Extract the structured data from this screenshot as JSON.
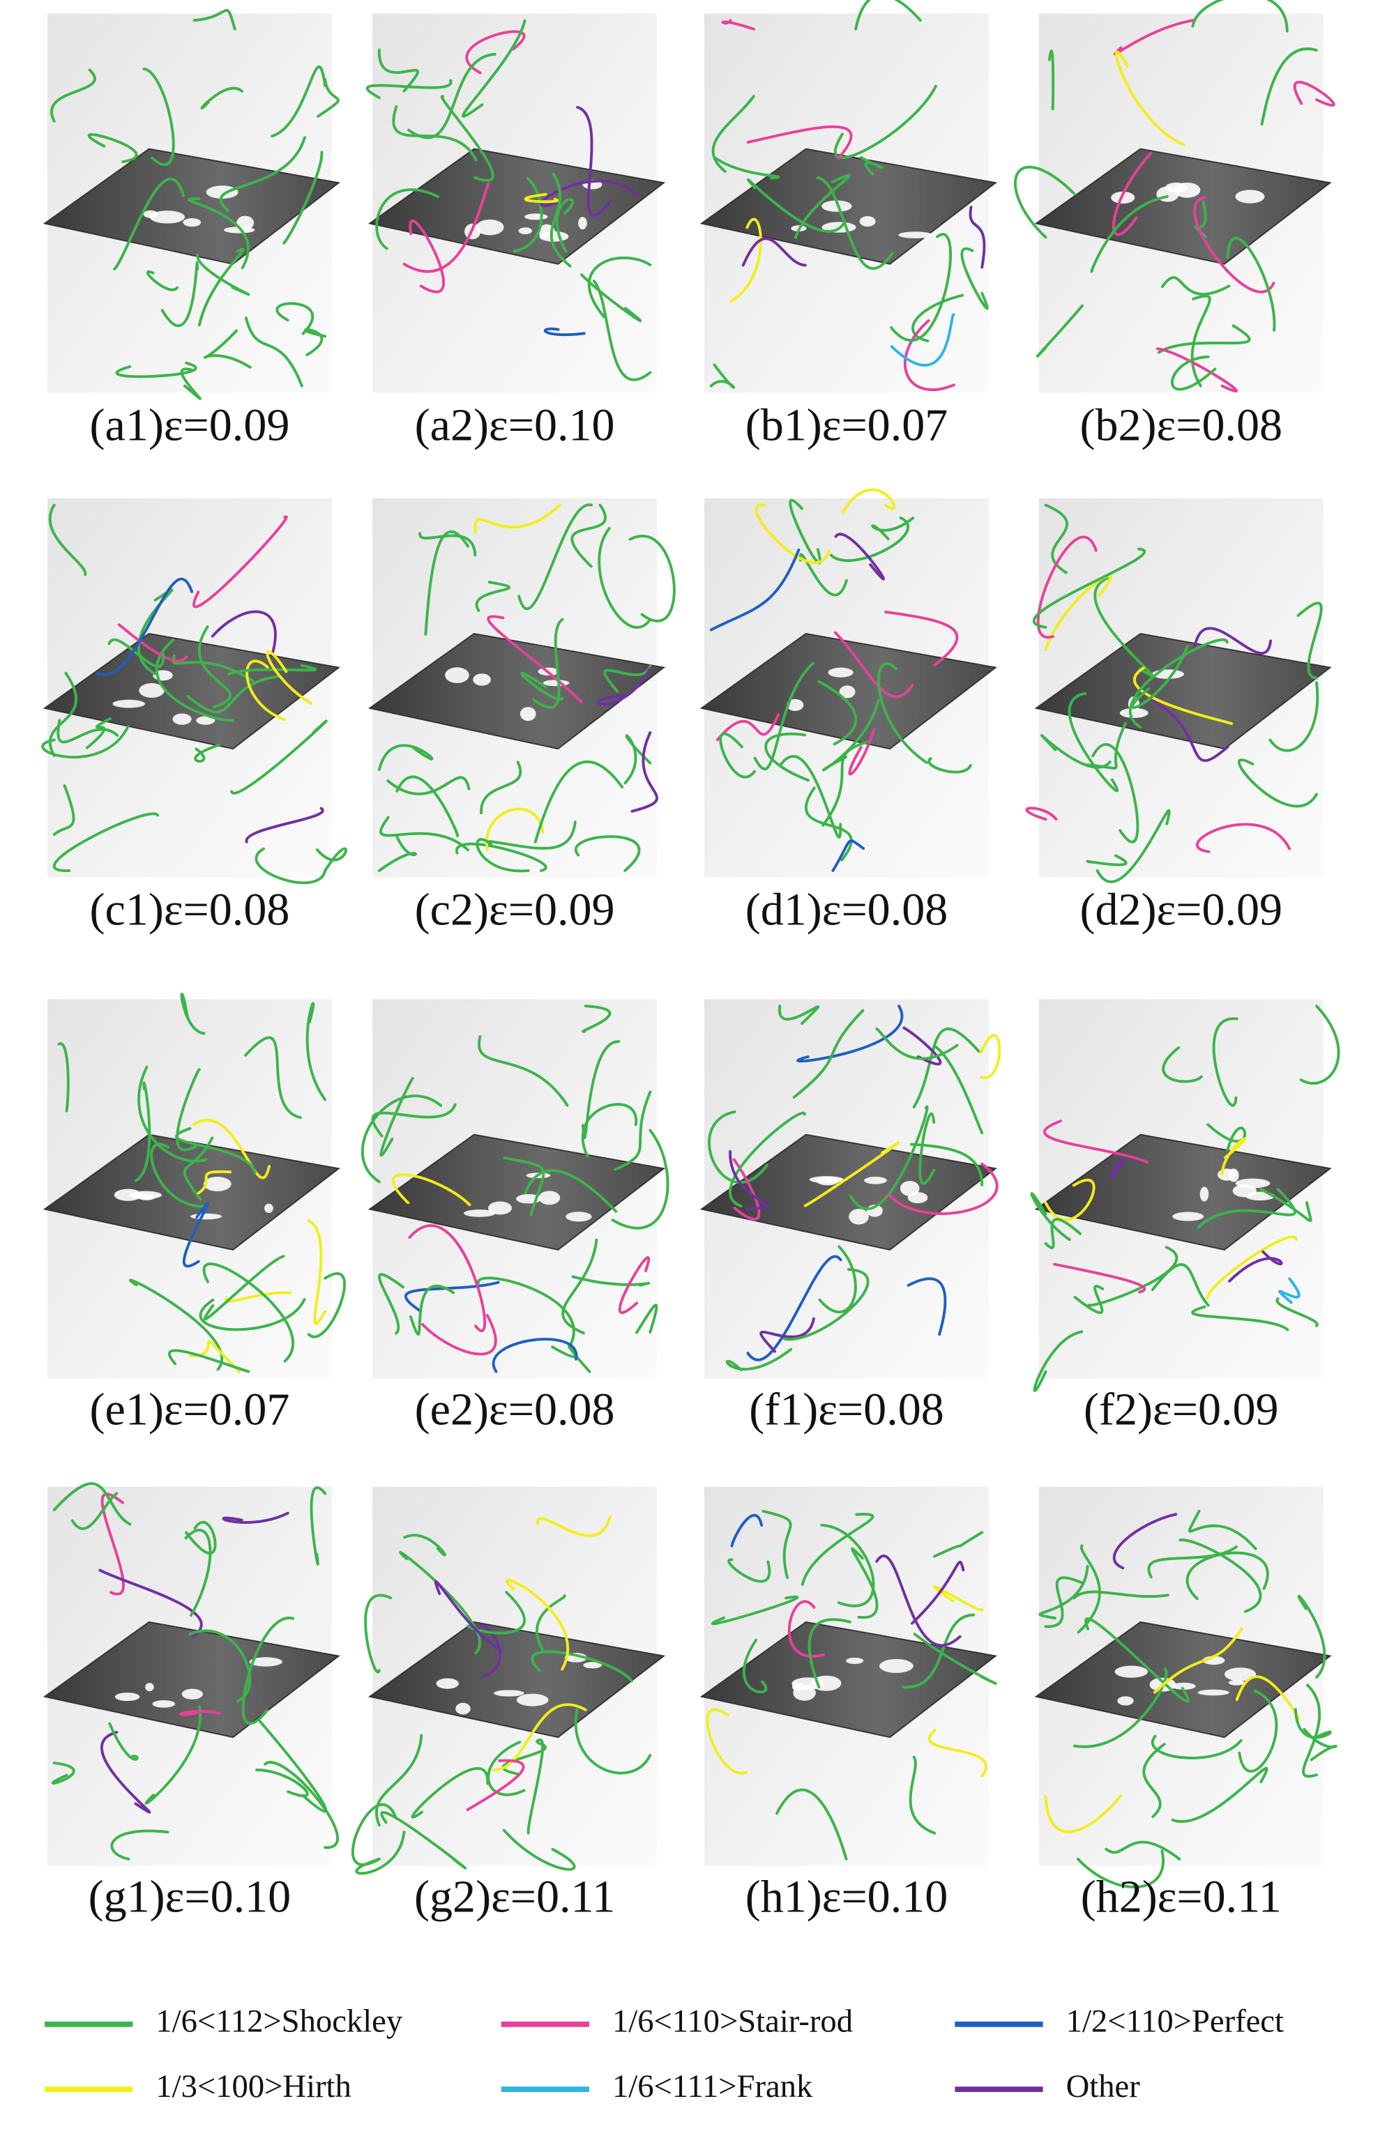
{
  "panels": [
    {
      "label": "(a1)ε=0.09"
    },
    {
      "label": "(a2)ε=0.10"
    },
    {
      "label": "(b1)ε=0.07"
    },
    {
      "label": "(b2)ε=0.08"
    },
    {
      "label": "(c1)ε=0.08"
    },
    {
      "label": "(c2)ε=0.09"
    },
    {
      "label": "(d1)ε=0.08"
    },
    {
      "label": "(d2)ε=0.09"
    },
    {
      "label": "(e1)ε=0.07"
    },
    {
      "label": "(e2)ε=0.08"
    },
    {
      "label": "(f1)ε=0.08"
    },
    {
      "label": "(f2)ε=0.09"
    },
    {
      "label": "(g1)ε=0.10"
    },
    {
      "label": "(g2)ε=0.11"
    },
    {
      "label": "(h1)ε=0.10"
    },
    {
      "label": "(h2)ε=0.11"
    }
  ],
  "legend": [
    {
      "name": "1/6<112>Shockley",
      "color": "#3cb44b"
    },
    {
      "name": "1/6<110>Stair-rod",
      "color": "#e8409a"
    },
    {
      "name": "1/2<110>Perfect",
      "color": "#1f5fbf"
    },
    {
      "name": "1/3<100>Hirth",
      "color": "#f2ee1a"
    },
    {
      "name": "1/6<111>Frank",
      "color": "#2fb4e6"
    },
    {
      "name": "Other",
      "color": "#7030a0"
    }
  ]
}
